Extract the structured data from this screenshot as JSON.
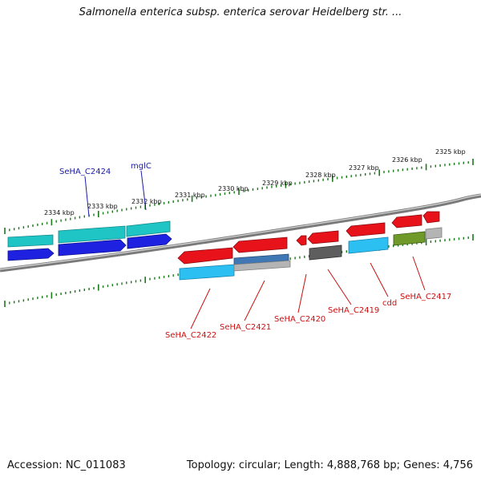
{
  "header": {
    "title": "Salmonella enterica subsp. enterica serovar Heidelberg str. ..."
  },
  "footer": {
    "accession": "Accession: NC_011083",
    "topology": "Topology: circular; Length: 4,888,768 bp; Genes: 4,756"
  },
  "ruler": {
    "ticks": [
      "2334 kbp",
      "2333 kbp",
      "2332 kbp",
      "2331 kbp",
      "2330 kbp",
      "2329 kbp",
      "2328 kbp",
      "2327 kbp",
      "2326 kbp",
      "2325 kbp"
    ]
  },
  "gene_labels": {
    "top": [
      "SeHA_C2424",
      "mglC"
    ],
    "bottom": [
      "SeHA_C2422",
      "SeHA_C2421",
      "SeHA_C2420",
      "SeHA_C2419",
      "cdd",
      "SeHA_C2417"
    ]
  },
  "colors": {
    "teal": "#1fc4c4",
    "blue": "#1e22e0",
    "red": "#e8121a",
    "lightblue": "#2cc0f2",
    "slateblue": "#3f78b4",
    "gray": "#5e5e5e",
    "lightgray": "#b4b4b4",
    "olive": "#6f9a2a",
    "ruler_green": "#1c7a1c",
    "top_label": "#1a1aa8",
    "bottom_label": "#cc1010"
  }
}
